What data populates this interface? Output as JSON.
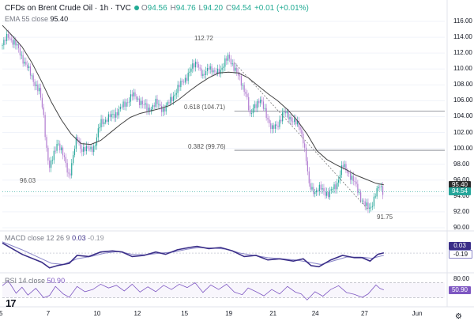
{
  "header": {
    "title": "CFDs on Brent Crude Oil · 1h · TVC",
    "o_label": "O",
    "o": "94.56",
    "h_label": "H",
    "h": "94.76",
    "l_label": "L",
    "l": "94.20",
    "c_label": "C",
    "c": "94.54",
    "change": "+0.01 (+0.01%)"
  },
  "ema_legend": {
    "label": "EMA 55 close",
    "value": "95.40"
  },
  "macd_legend": {
    "label": "MACD close 12 26 9",
    "value1": "0.03",
    "value2": "-0.19"
  },
  "rsi_legend": {
    "label": "RSI 14 close",
    "value": "50.90"
  },
  "colors": {
    "candle_up": "#26a69a",
    "candle_down": "#b07ad0",
    "ema": "#444444",
    "macd_line": "#3a2e88",
    "signal_line": "#8a86c8",
    "rsi_line": "#7e57c2",
    "price_badge": "#26a69a",
    "ema_badge": "#2b2b2b",
    "macd_badge": "#3a2e88",
    "rsi_badge": "#7e57c2"
  },
  "annotations": {
    "high": "112.72",
    "low_left": "96.03",
    "low_right": "91.75",
    "fib_618": "0.618 (104.71)",
    "fib_382": "0.382 (99.76)"
  },
  "logo": "17",
  "chart_data": {
    "type": "candlestick",
    "title": "CFDs on Brent Crude Oil · 1h · TVC",
    "x_ticks": [
      "5",
      "7",
      "10",
      "12",
      "15",
      "19",
      "21",
      "24",
      "27",
      "Jun"
    ],
    "x_tick_index": [
      0,
      48,
      96,
      137,
      185,
      230,
      275,
      318,
      368,
      420
    ],
    "x_range_index": [
      0,
      450
    ],
    "y_ticks": [
      "116.00",
      "114.00",
      "112.00",
      "110.00",
      "108.00",
      "106.00",
      "104.00",
      "102.00",
      "100.00",
      "98.00",
      "96.00",
      "94.00",
      "92.00",
      "90.00"
    ],
    "ylim": [
      90,
      117
    ],
    "price_waypoints": [
      [
        0,
        113
      ],
      [
        6,
        114.2
      ],
      [
        14,
        113
      ],
      [
        22,
        111
      ],
      [
        32,
        108.5
      ],
      [
        38,
        107
      ],
      [
        42,
        104
      ],
      [
        45,
        100
      ],
      [
        48,
        97.5
      ],
      [
        52,
        99
      ],
      [
        56,
        101
      ],
      [
        62,
        99
      ],
      [
        68,
        96.5
      ],
      [
        72,
        99
      ],
      [
        76,
        101.5
      ],
      [
        80,
        100
      ],
      [
        86,
        99.8
      ],
      [
        94,
        100.3
      ],
      [
        100,
        103.3
      ],
      [
        108,
        103.8
      ],
      [
        116,
        104.5
      ],
      [
        124,
        105.5
      ],
      [
        132,
        106.7
      ],
      [
        140,
        106
      ],
      [
        148,
        104.8
      ],
      [
        156,
        105.7
      ],
      [
        164,
        104.9
      ],
      [
        170,
        105.8
      ],
      [
        178,
        107.5
      ],
      [
        186,
        108.8
      ],
      [
        194,
        110.3
      ],
      [
        198,
        111
      ],
      [
        204,
        108.8
      ],
      [
        210,
        110.5
      ],
      [
        216,
        109.3
      ],
      [
        222,
        110
      ],
      [
        230,
        111.5
      ],
      [
        236,
        110.2
      ],
      [
        242,
        108.5
      ],
      [
        248,
        107
      ],
      [
        252,
        103.8
      ],
      [
        256,
        105.5
      ],
      [
        262,
        106
      ],
      [
        268,
        104.5
      ],
      [
        274,
        102.3
      ],
      [
        280,
        103
      ],
      [
        286,
        104.5
      ],
      [
        290,
        104.2
      ],
      [
        296,
        103.5
      ],
      [
        303,
        102.5
      ],
      [
        306,
        101.2
      ],
      [
        309,
        98.5
      ],
      [
        312,
        95.2
      ],
      [
        318,
        94.6
      ],
      [
        324,
        94.9
      ],
      [
        332,
        94.2
      ],
      [
        340,
        95.5
      ],
      [
        346,
        97.8
      ],
      [
        352,
        97
      ],
      [
        358,
        95.7
      ],
      [
        364,
        94
      ],
      [
        370,
        92.6
      ],
      [
        374,
        92.4
      ],
      [
        380,
        94.4
      ],
      [
        384,
        95.2
      ],
      [
        388,
        94.5
      ]
    ],
    "last_index": 388,
    "ema55": [
      [
        0,
        115.5
      ],
      [
        10,
        114.2
      ],
      [
        20,
        112.8
      ],
      [
        30,
        110.8
      ],
      [
        40,
        108.4
      ],
      [
        50,
        105.8
      ],
      [
        60,
        103.6
      ],
      [
        70,
        101.8
      ],
      [
        80,
        100.6
      ],
      [
        90,
        100.5
      ],
      [
        100,
        101
      ],
      [
        110,
        102
      ],
      [
        120,
        103
      ],
      [
        130,
        103.9
      ],
      [
        140,
        104.4
      ],
      [
        150,
        104.7
      ],
      [
        160,
        105
      ],
      [
        170,
        105.4
      ],
      [
        180,
        106.2
      ],
      [
        190,
        107.2
      ],
      [
        200,
        108.1
      ],
      [
        210,
        108.9
      ],
      [
        220,
        109.5
      ],
      [
        230,
        109.6
      ],
      [
        240,
        109.5
      ],
      [
        250,
        108.9
      ],
      [
        260,
        107.9
      ],
      [
        270,
        106.9
      ],
      [
        280,
        106
      ],
      [
        290,
        104.9
      ],
      [
        300,
        103.5
      ],
      [
        310,
        101.8
      ],
      [
        320,
        99.7
      ],
      [
        330,
        98.6
      ],
      [
        340,
        97.9
      ],
      [
        350,
        97.3
      ],
      [
        360,
        96.6
      ],
      [
        370,
        96.1
      ],
      [
        380,
        95.6
      ],
      [
        388,
        95.4
      ]
    ],
    "fib_levels": [
      {
        "label": "0.618 (104.71)",
        "value": 104.71
      },
      {
        "label": "0.382 (99.76)",
        "value": 99.76
      }
    ],
    "trendline": [
      [
        236,
        110.8
      ],
      [
        372,
        92.3
      ]
    ],
    "last_price": 94.54,
    "ema_last": 95.4,
    "macd": {
      "ylim": [
        -1.6,
        1.2
      ],
      "line": [
        [
          0,
          0.9
        ],
        [
          20,
          -0.1
        ],
        [
          40,
          -0.8
        ],
        [
          48,
          -1.3
        ],
        [
          56,
          -1.1
        ],
        [
          68,
          -0.9
        ],
        [
          76,
          -0.2
        ],
        [
          88,
          -0.3
        ],
        [
          100,
          0.1
        ],
        [
          112,
          0.2
        ],
        [
          122,
          0.1
        ],
        [
          132,
          -0.3
        ],
        [
          144,
          -0.2
        ],
        [
          156,
          0.1
        ],
        [
          166,
          -0.1
        ],
        [
          178,
          0.3
        ],
        [
          190,
          0.5
        ],
        [
          198,
          0.6
        ],
        [
          210,
          0.4
        ],
        [
          222,
          0.5
        ],
        [
          234,
          0.2
        ],
        [
          246,
          -0.3
        ],
        [
          258,
          -0.2
        ],
        [
          270,
          -0.6
        ],
        [
          282,
          -0.5
        ],
        [
          296,
          -0.7
        ],
        [
          306,
          -0.5
        ],
        [
          314,
          -1.1
        ],
        [
          322,
          -1.2
        ],
        [
          334,
          -0.6
        ],
        [
          346,
          -0.2
        ],
        [
          358,
          -0.4
        ],
        [
          366,
          -0.4
        ],
        [
          374,
          -0.7
        ],
        [
          382,
          -0.1
        ],
        [
          388,
          0.03
        ]
      ],
      "signal": [
        [
          0,
          1
        ],
        [
          20,
          0.3
        ],
        [
          40,
          -0.5
        ],
        [
          50,
          -0.9
        ],
        [
          62,
          -1
        ],
        [
          76,
          -0.5
        ],
        [
          90,
          -0.3
        ],
        [
          104,
          0
        ],
        [
          118,
          0.15
        ],
        [
          132,
          -0.1
        ],
        [
          146,
          -0.15
        ],
        [
          160,
          0
        ],
        [
          174,
          0.1
        ],
        [
          188,
          0.35
        ],
        [
          200,
          0.5
        ],
        [
          214,
          0.45
        ],
        [
          228,
          0.35
        ],
        [
          242,
          0
        ],
        [
          256,
          -0.2
        ],
        [
          270,
          -0.4
        ],
        [
          284,
          -0.5
        ],
        [
          298,
          -0.6
        ],
        [
          312,
          -0.8
        ],
        [
          324,
          -1
        ],
        [
          336,
          -0.7
        ],
        [
          350,
          -0.35
        ],
        [
          364,
          -0.35
        ],
        [
          376,
          -0.45
        ],
        [
          388,
          -0.19
        ]
      ]
    },
    "rsi": {
      "ylim": [
        10,
        90
      ],
      "levels": [
        70,
        30
      ],
      "tick": "80.00",
      "line": [
        [
          0,
          62
        ],
        [
          6,
          75
        ],
        [
          14,
          42
        ],
        [
          20,
          58
        ],
        [
          26,
          37
        ],
        [
          34,
          55
        ],
        [
          42,
          30
        ],
        [
          48,
          36
        ],
        [
          54,
          60
        ],
        [
          62,
          40
        ],
        [
          68,
          31
        ],
        [
          76,
          60
        ],
        [
          84,
          46
        ],
        [
          92,
          52
        ],
        [
          100,
          66
        ],
        [
          108,
          56
        ],
        [
          116,
          63
        ],
        [
          124,
          48
        ],
        [
          132,
          66
        ],
        [
          140,
          45
        ],
        [
          148,
          59
        ],
        [
          156,
          46
        ],
        [
          164,
          63
        ],
        [
          172,
          52
        ],
        [
          180,
          66
        ],
        [
          188,
          57
        ],
        [
          196,
          70
        ],
        [
          204,
          44
        ],
        [
          212,
          64
        ],
        [
          220,
          52
        ],
        [
          228,
          66
        ],
        [
          236,
          45
        ],
        [
          244,
          38
        ],
        [
          250,
          56
        ],
        [
          258,
          46
        ],
        [
          266,
          35
        ],
        [
          274,
          52
        ],
        [
          282,
          40
        ],
        [
          290,
          60
        ],
        [
          298,
          45
        ],
        [
          304,
          40
        ],
        [
          310,
          24
        ],
        [
          318,
          46
        ],
        [
          326,
          34
        ],
        [
          334,
          52
        ],
        [
          342,
          62
        ],
        [
          350,
          44
        ],
        [
          358,
          39
        ],
        [
          366,
          31
        ],
        [
          372,
          40
        ],
        [
          380,
          64
        ],
        [
          384,
          55
        ],
        [
          388,
          50.9
        ]
      ]
    }
  }
}
